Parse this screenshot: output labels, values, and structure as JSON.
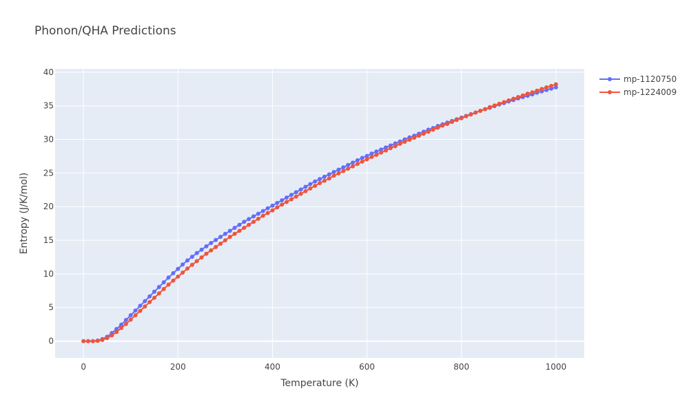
{
  "chart_data": {
    "type": "line",
    "title": "Phonon/QHA Predictions",
    "xlabel": "Temperature (K)",
    "ylabel": "Entropy (J/K/mol)",
    "xlim": [
      -60,
      1060
    ],
    "ylim": [
      -2.5,
      40.5
    ],
    "x_ticks": [
      0,
      200,
      400,
      600,
      800,
      1000
    ],
    "y_ticks": [
      0,
      5,
      10,
      15,
      20,
      25,
      30,
      35,
      40
    ],
    "grid": true,
    "legend_position": "top-right",
    "background": "#e5ecf6",
    "x": [
      0,
      10,
      20,
      30,
      40,
      50,
      60,
      70,
      80,
      90,
      100,
      110,
      120,
      130,
      140,
      150,
      160,
      170,
      180,
      190,
      200,
      210,
      220,
      230,
      240,
      250,
      260,
      270,
      280,
      290,
      300,
      310,
      320,
      330,
      340,
      350,
      360,
      370,
      380,
      390,
      400,
      410,
      420,
      430,
      440,
      450,
      460,
      470,
      480,
      490,
      500,
      510,
      520,
      530,
      540,
      550,
      560,
      570,
      580,
      590,
      600,
      610,
      620,
      630,
      640,
      650,
      660,
      670,
      680,
      690,
      700,
      710,
      720,
      730,
      740,
      750,
      760,
      770,
      780,
      790,
      800,
      810,
      820,
      830,
      840,
      850,
      860,
      870,
      880,
      890,
      900,
      910,
      920,
      930,
      940,
      950,
      960,
      970,
      980,
      990,
      1000
    ],
    "series": [
      {
        "name": "mp-1120750",
        "color": "#636efa",
        "values": [
          0,
          0,
          0,
          0.08,
          0.3,
          0.65,
          1.2,
          1.8,
          2.45,
          3.15,
          3.85,
          4.55,
          5.25,
          5.95,
          6.65,
          7.35,
          8.05,
          8.75,
          9.45,
          10.1,
          10.75,
          11.4,
          12.0,
          12.55,
          13.1,
          13.6,
          14.1,
          14.6,
          15.05,
          15.5,
          15.95,
          16.4,
          16.85,
          17.3,
          17.75,
          18.15,
          18.55,
          18.95,
          19.35,
          19.75,
          20.15,
          20.55,
          20.95,
          21.35,
          21.75,
          22.15,
          22.55,
          22.95,
          23.35,
          23.75,
          24.1,
          24.45,
          24.8,
          25.15,
          25.5,
          25.85,
          26.2,
          26.55,
          26.9,
          27.25,
          27.55,
          27.9,
          28.2,
          28.5,
          28.8,
          29.1,
          29.4,
          29.7,
          30.0,
          30.3,
          30.55,
          30.85,
          31.15,
          31.45,
          31.7,
          32.0,
          32.25,
          32.5,
          32.75,
          33.0,
          33.25,
          33.5,
          33.75,
          34.0,
          34.25,
          34.5,
          34.7,
          34.95,
          35.2,
          35.4,
          35.65,
          35.85,
          36.1,
          36.3,
          36.5,
          36.7,
          36.95,
          37.15,
          37.35,
          37.55,
          37.75
        ]
      },
      {
        "name": "mp-1224009",
        "color": "#ef553b",
        "values": [
          0,
          0,
          0,
          0.05,
          0.18,
          0.45,
          0.85,
          1.35,
          1.95,
          2.55,
          3.2,
          3.85,
          4.5,
          5.15,
          5.8,
          6.45,
          7.1,
          7.75,
          8.4,
          9.0,
          9.6,
          10.2,
          10.8,
          11.35,
          11.9,
          12.45,
          13.0,
          13.5,
          14.0,
          14.5,
          15.0,
          15.5,
          15.95,
          16.4,
          16.85,
          17.3,
          17.75,
          18.2,
          18.65,
          19.05,
          19.45,
          19.9,
          20.3,
          20.7,
          21.1,
          21.5,
          21.9,
          22.3,
          22.7,
          23.1,
          23.5,
          23.85,
          24.2,
          24.6,
          24.95,
          25.3,
          25.65,
          26.0,
          26.35,
          26.7,
          27.05,
          27.4,
          27.7,
          28.05,
          28.35,
          28.7,
          29.0,
          29.35,
          29.65,
          29.95,
          30.25,
          30.55,
          30.85,
          31.15,
          31.45,
          31.75,
          32.05,
          32.3,
          32.6,
          32.9,
          33.15,
          33.45,
          33.7,
          34.0,
          34.25,
          34.5,
          34.8,
          35.05,
          35.3,
          35.55,
          35.8,
          36.05,
          36.3,
          36.55,
          36.8,
          37.0,
          37.25,
          37.5,
          37.75,
          37.95,
          38.2
        ]
      }
    ]
  }
}
